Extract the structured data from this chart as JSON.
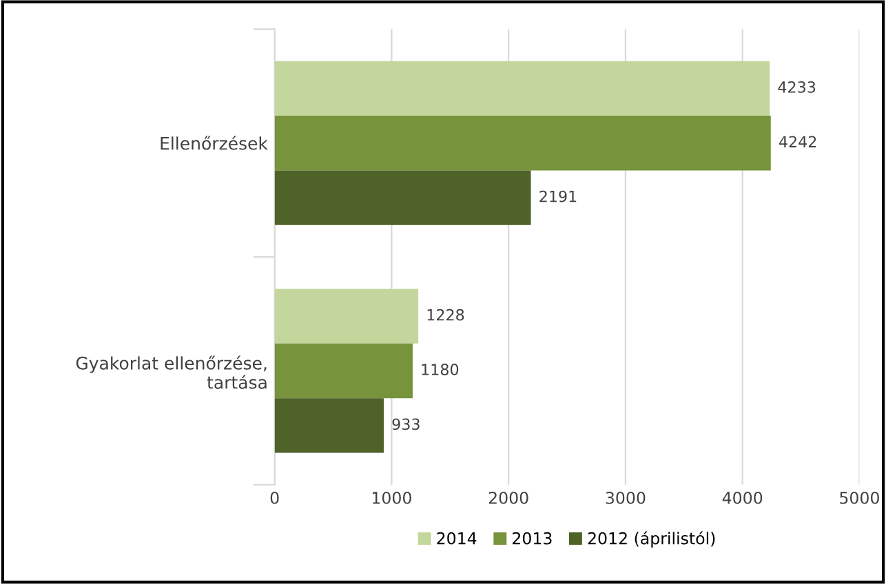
{
  "chart_data": {
    "type": "bar",
    "orientation": "horizontal",
    "categories": [
      "Ellenőrzések",
      "Gyakorlat ellenőrzése,\ntartása"
    ],
    "series": [
      {
        "name": "2014",
        "color": "#c3d69b",
        "values": [
          4233,
          1228
        ]
      },
      {
        "name": "2013",
        "color": "#77933c",
        "values": [
          4242,
          1180
        ]
      },
      {
        "name": "2012 (áprilistól)",
        "color": "#4f6228",
        "values": [
          2191,
          933
        ]
      }
    ],
    "xlim": [
      0,
      5000
    ],
    "xticks": [
      0,
      1000,
      2000,
      3000,
      4000,
      5000
    ],
    "grid": "x",
    "legend": "bottom",
    "data_labels": true
  }
}
